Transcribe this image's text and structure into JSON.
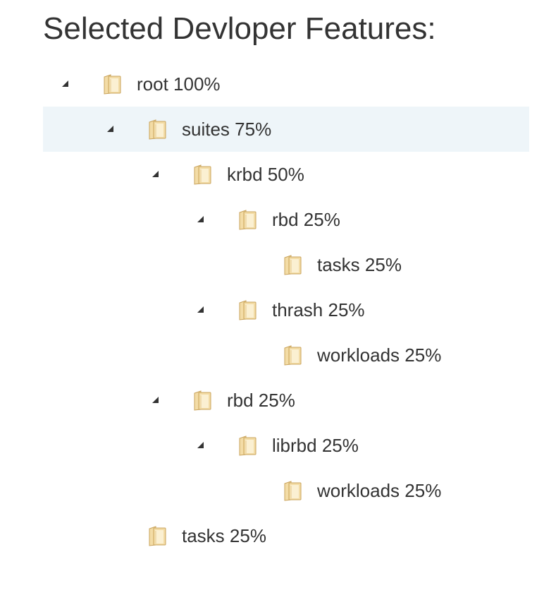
{
  "page": {
    "title": "Selected Devloper Features:"
  },
  "colors": {
    "text": "#333333",
    "selected_row_bg": "#eef5f9",
    "folder_fill": "#f3dca6",
    "folder_stroke": "#c9a35b"
  },
  "tree": {
    "nodes": [
      {
        "label": "root 100%",
        "depth": 0,
        "expanded": true,
        "has_children": true,
        "selected": false,
        "icon": "folder-icon"
      },
      {
        "label": "suites 75%",
        "depth": 1,
        "expanded": true,
        "has_children": true,
        "selected": true,
        "icon": "folder-icon"
      },
      {
        "label": "krbd 50%",
        "depth": 2,
        "expanded": true,
        "has_children": true,
        "selected": false,
        "icon": "folder-icon"
      },
      {
        "label": "rbd 25%",
        "depth": 3,
        "expanded": true,
        "has_children": true,
        "selected": false,
        "icon": "folder-icon"
      },
      {
        "label": "tasks 25%",
        "depth": 4,
        "expanded": false,
        "has_children": false,
        "selected": false,
        "icon": "folder-icon"
      },
      {
        "label": "thrash 25%",
        "depth": 3,
        "expanded": true,
        "has_children": true,
        "selected": false,
        "icon": "folder-icon"
      },
      {
        "label": "workloads 25%",
        "depth": 4,
        "expanded": false,
        "has_children": false,
        "selected": false,
        "icon": "folder-icon"
      },
      {
        "label": "rbd 25%",
        "depth": 2,
        "expanded": true,
        "has_children": true,
        "selected": false,
        "icon": "folder-icon"
      },
      {
        "label": "librbd 25%",
        "depth": 3,
        "expanded": true,
        "has_children": true,
        "selected": false,
        "icon": "folder-icon"
      },
      {
        "label": "workloads 25%",
        "depth": 4,
        "expanded": false,
        "has_children": false,
        "selected": false,
        "icon": "folder-icon"
      },
      {
        "label": "tasks 25%",
        "depth": 1,
        "expanded": false,
        "has_children": false,
        "selected": false,
        "icon": "folder-icon"
      }
    ]
  }
}
